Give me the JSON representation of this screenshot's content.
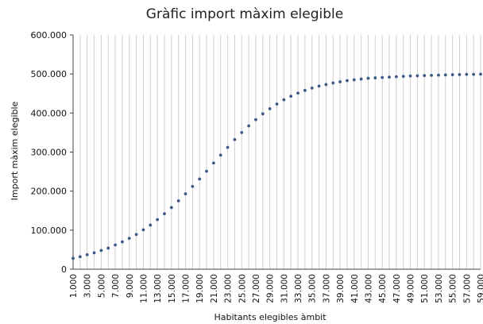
{
  "chart_data": {
    "type": "scatter",
    "title": "Gràfic import màxim elegible",
    "xlabel": "Habitants elegibles àmbit",
    "ylabel": "Import màxim elegible",
    "xlim": [
      1000,
      59000
    ],
    "ylim": [
      0,
      600000
    ],
    "x_tick_labels": [
      "1.000",
      "3.000",
      "5.000",
      "7.000",
      "9.000",
      "11.000",
      "13.000",
      "15.000",
      "17.000",
      "19.000",
      "21.000",
      "23.000",
      "25.000",
      "27.000",
      "29.000",
      "31.000",
      "33.000",
      "35.000",
      "37.000",
      "39.000",
      "41.000",
      "43.000",
      "45.000",
      "47.000",
      "49.000",
      "51.000",
      "53.000",
      "55.000",
      "57.000",
      "59.000"
    ],
    "y_tick_labels": [
      "0",
      "100.000",
      "200.000",
      "300.000",
      "400.000",
      "500.000",
      "600.000"
    ],
    "y_ticks": [
      0,
      100000,
      200000,
      300000,
      400000,
      500000,
      600000
    ],
    "grid": {
      "vertical": true,
      "horizontal": false
    },
    "marker_color": "#3d5a86",
    "series": [
      {
        "x": [
          1000,
          2000,
          3000,
          4000,
          5000,
          6000,
          7000,
          8000,
          9000,
          10000,
          11000,
          12000,
          13000,
          14000,
          15000,
          16000,
          17000,
          18000,
          19000,
          20000,
          21000,
          22000,
          23000,
          24000,
          25000,
          26000,
          27000,
          28000,
          29000,
          30000,
          31000,
          32000,
          33000,
          34000,
          35000,
          36000,
          37000,
          38000,
          39000,
          40000,
          41000,
          42000,
          43000,
          44000,
          45000,
          46000,
          47000,
          48000,
          49000,
          50000,
          51000,
          52000,
          53000,
          54000,
          55000,
          56000,
          57000,
          58000,
          59000
        ],
        "y": [
          28000,
          32000,
          37000,
          42000,
          48000,
          54000,
          62000,
          70000,
          79000,
          89000,
          101000,
          113000,
          127000,
          142000,
          158000,
          175000,
          193000,
          212000,
          231000,
          251000,
          272000,
          292000,
          312000,
          332000,
          350000,
          367000,
          383000,
          398000,
          411000,
          423000,
          434000,
          443000,
          451000,
          458000,
          464000,
          469000,
          473000,
          477000,
          480000,
          483000,
          485000,
          487000,
          489000,
          490000,
          491000,
          492000,
          493000,
          494000,
          495000,
          495500,
          496000,
          496500,
          497000,
          497500,
          498000,
          498500,
          499000,
          499000,
          499500
        ]
      }
    ]
  }
}
